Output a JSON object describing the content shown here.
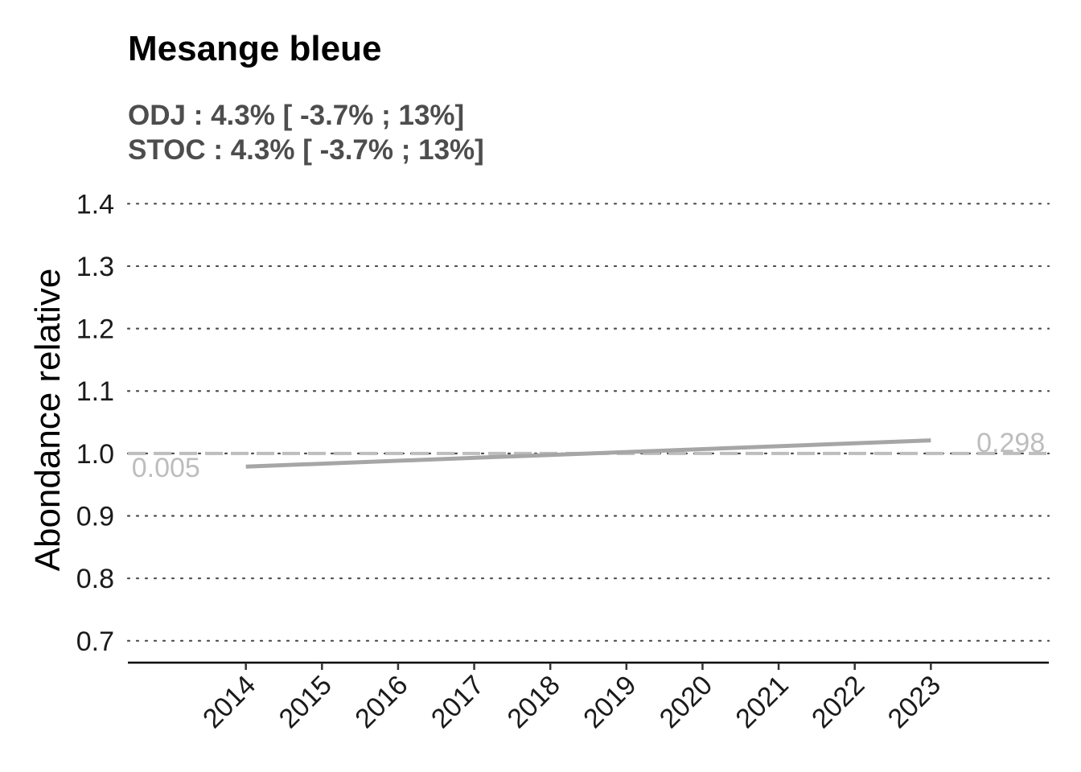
{
  "chart_data": {
    "type": "line",
    "title": "Mesange bleue",
    "subtitle_lines": [
      "ODJ : 4.3% [ -3.7% ; 13%]",
      "STOC : 4.3% [ -3.7% ; 13%]"
    ],
    "xlabel": "",
    "ylabel": "Abondance relative",
    "x_ticks": [
      "2014",
      "2015",
      "2016",
      "2017",
      "2018",
      "2019",
      "2020",
      "2021",
      "2022",
      "2023"
    ],
    "xlim": [
      2012.45,
      2024.55
    ],
    "ylim": [
      0.665,
      1.43
    ],
    "y_ticks": [
      0.7,
      0.8,
      0.9,
      1.0,
      1.1,
      1.2,
      1.3,
      1.4
    ],
    "y_tick_labels": [
      "0.7",
      "0.8",
      "0.9",
      "1.0",
      "1.1",
      "1.2",
      "1.3",
      "1.4"
    ],
    "grid": "horizontal dotted",
    "reference_line": {
      "y": 1.0,
      "style": "dashed",
      "color": "#bdbdbd"
    },
    "series": [
      {
        "x": [
          2014,
          2023
        ],
        "y": [
          0.979,
          1.021
        ],
        "color": "#a6a6a6"
      }
    ],
    "annotations": [
      {
        "text": "0.005",
        "x": 2012.5,
        "y": 0.978,
        "anchor": "start"
      },
      {
        "text": "0.298",
        "x": 2024.5,
        "y": 1.018,
        "anchor": "end"
      }
    ]
  }
}
